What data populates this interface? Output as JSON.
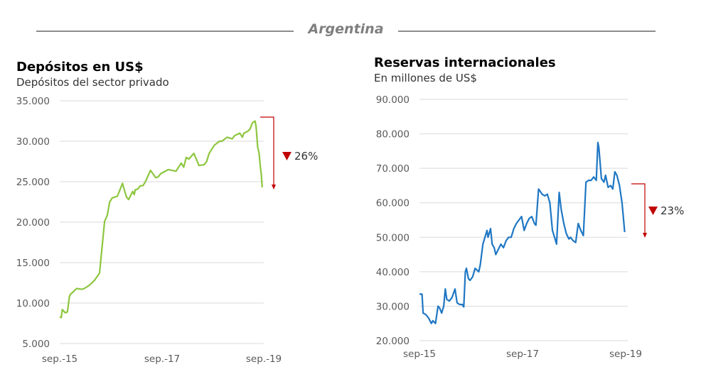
{
  "header": {
    "title": "Argentina"
  },
  "chart_data": [
    {
      "type": "line",
      "title": "Depósitos en US$",
      "subtitle": "Depósitos del sector privado",
      "color": "#8dc63f",
      "x_ticks": [
        "sep.-15",
        "sep.-17",
        "sep.-19"
      ],
      "y_ticks": [
        "35.000",
        "30.000",
        "25.000",
        "20.000",
        "15.000",
        "10.000",
        "5.000"
      ],
      "ylim": [
        5000,
        35000
      ],
      "xlim": [
        2015.67,
        2019.67
      ],
      "x": [
        2015.67,
        2015.7,
        2015.72,
        2015.75,
        2015.78,
        2015.82,
        2015.86,
        2015.88,
        2015.92,
        2016.0,
        2016.1,
        2016.15,
        2016.25,
        2016.35,
        2016.45,
        2016.55,
        2016.6,
        2016.62,
        2016.65,
        2016.7,
        2016.8,
        2016.9,
        2016.95,
        2016.98,
        2017.02,
        2017.1,
        2017.13,
        2017.15,
        2017.2,
        2017.25,
        2017.3,
        2017.35,
        2017.45,
        2017.55,
        2017.6,
        2017.65,
        2017.8,
        2017.95,
        2018.05,
        2018.1,
        2018.15,
        2018.2,
        2018.3,
        2018.4,
        2018.5,
        2018.55,
        2018.6,
        2018.7,
        2018.8,
        2018.85,
        2018.95,
        2019.05,
        2019.1,
        2019.2,
        2019.25,
        2019.28,
        2019.35,
        2019.4,
        2019.45,
        2019.5,
        2019.52,
        2019.55,
        2019.58,
        2019.6,
        2019.62,
        2019.64
      ],
      "y": [
        8300,
        8200,
        9200,
        9000,
        8800,
        8900,
        10800,
        11100,
        11300,
        11800,
        11700,
        11800,
        12200,
        12800,
        13700,
        20100,
        20800,
        21500,
        22500,
        23000,
        23200,
        24800,
        23700,
        23100,
        22800,
        23800,
        23400,
        24000,
        24100,
        24500,
        24500,
        25000,
        26400,
        25500,
        25600,
        26000,
        26500,
        26300,
        27300,
        26800,
        28000,
        27800,
        28500,
        27000,
        27100,
        27500,
        28500,
        29500,
        30000,
        30000,
        30500,
        30300,
        30700,
        31000,
        30500,
        31000,
        31200,
        31500,
        32300,
        32500,
        31800,
        29300,
        28500,
        27000,
        26000,
        24300
      ],
      "annotation": "26%"
    },
    {
      "type": "line",
      "title": "Reservas internacionales",
      "subtitle": "En millones de US$",
      "color": "#1f77c4",
      "x_ticks": [
        "sep-15",
        "sep-17",
        "sep-19"
      ],
      "y_ticks": [
        "90.000",
        "80.000",
        "70.000",
        "60.000",
        "50.000",
        "40.000",
        "30.000",
        "20.000"
      ],
      "ylim": [
        20000,
        90000
      ],
      "xlim": [
        2015.67,
        2019.67
      ],
      "x": [
        2015.67,
        2015.72,
        2015.74,
        2015.8,
        2015.85,
        2015.9,
        2015.93,
        2015.98,
        2016.03,
        2016.06,
        2016.1,
        2016.14,
        2016.17,
        2016.2,
        2016.25,
        2016.3,
        2016.36,
        2016.4,
        2016.45,
        2016.5,
        2016.53,
        2016.56,
        2016.58,
        2016.62,
        2016.65,
        2016.7,
        2016.75,
        2016.82,
        2016.85,
        2016.9,
        2016.98,
        2017.0,
        2017.05,
        2017.08,
        2017.12,
        2017.15,
        2017.2,
        2017.25,
        2017.3,
        2017.35,
        2017.4,
        2017.45,
        2017.5,
        2017.55,
        2017.6,
        2017.65,
        2017.7,
        2017.75,
        2017.8,
        2017.85,
        2017.9,
        2017.93,
        2017.98,
        2018.05,
        2018.1,
        2018.15,
        2018.2,
        2018.25,
        2018.3,
        2018.33,
        2018.38,
        2018.42,
        2018.47,
        2018.52,
        2018.57,
        2018.6,
        2018.65,
        2018.7,
        2018.75,
        2018.8,
        2018.85,
        2018.9,
        2018.95,
        2019.0,
        2019.05,
        2019.1,
        2019.13,
        2019.15,
        2019.2,
        2019.25,
        2019.28,
        2019.33,
        2019.38,
        2019.42,
        2019.46,
        2019.5,
        2019.55,
        2019.6,
        2019.63,
        2019.65
      ],
      "y": [
        33500,
        33500,
        28000,
        27500,
        26500,
        25000,
        25800,
        25000,
        30000,
        29500,
        28000,
        30000,
        35000,
        32000,
        31500,
        32500,
        35000,
        31000,
        30500,
        30500,
        29800,
        40000,
        41000,
        38000,
        37500,
        38500,
        41000,
        40000,
        42000,
        48000,
        52000,
        50000,
        52500,
        48000,
        47000,
        45000,
        46500,
        48000,
        47000,
        49000,
        50000,
        50000,
        52500,
        54000,
        55000,
        56000,
        52000,
        54000,
        55500,
        56000,
        54000,
        53500,
        64000,
        62500,
        62000,
        62500,
        60000,
        52000,
        49500,
        48000,
        63000,
        58000,
        54000,
        51000,
        49500,
        50000,
        49000,
        48500,
        54000,
        52000,
        50500,
        66000,
        66500,
        66500,
        67500,
        66500,
        77500,
        76000,
        67000,
        66000,
        68000,
        64500,
        65000,
        64000,
        69000,
        68000,
        65000,
        60000,
        55000,
        51500
      ],
      "annotation": "23%"
    }
  ]
}
